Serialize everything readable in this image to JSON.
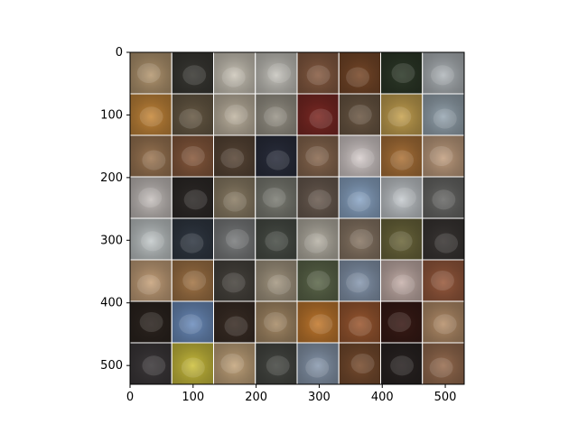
{
  "figure": {
    "image_grid": {
      "rows": 8,
      "cols": 8,
      "subject": "dog photos (pekingese / tibetan spaniel style), mixed colors",
      "cell_palettes": [
        [
          "#b79a73",
          "#3b3a35",
          "#cfc9bc",
          "#c9c7c0",
          "#8a5e44",
          "#7a4a2a",
          "#2e3a29",
          "#b3b9bd"
        ],
        [
          "#c98a3c",
          "#6a5c47",
          "#c2b7a4",
          "#9c978b",
          "#7f2a25",
          "#6e5a46",
          "#c9a553",
          "#9aa9b4"
        ],
        [
          "#a07a56",
          "#8b5c3f",
          "#5b4838",
          "#2b2f3e",
          "#8c6b52",
          "#d9d0cf",
          "#b0763b",
          "#c4a182"
        ],
        [
          "#c9c3c0",
          "#2f2b29",
          "#8e8068",
          "#7f8077",
          "#6d5e53",
          "#8ea9c9",
          "#c8cdd1",
          "#6b6b69"
        ],
        [
          "#c6cccd",
          "#323a45",
          "#7d7f80",
          "#4b5049",
          "#b9b4a8",
          "#8c7a68",
          "#6f6a3e",
          "#3b3735"
        ],
        [
          "#c9a47d",
          "#a57748",
          "#4a4640",
          "#a79a84",
          "#5f6a4d",
          "#8a9bb2",
          "#c9b3ad",
          "#9b5c3f"
        ],
        [
          "#2d2520",
          "#6e8fbf",
          "#3b2e26",
          "#a98d69",
          "#c57b2f",
          "#9e5a32",
          "#3a1b16",
          "#b8916c"
        ],
        [
          "#3e3a3c",
          "#cfc23f",
          "#c6a77e",
          "#484a45",
          "#8b9bb0",
          "#7a4e30",
          "#2a2423",
          "#9a6f52"
        ]
      ]
    },
    "axes": {
      "x_ticks": [
        "0",
        "100",
        "200",
        "300",
        "400",
        "500"
      ],
      "y_ticks": [
        "0",
        "100",
        "200",
        "300",
        "400",
        "500"
      ],
      "x_range": [
        0,
        530
      ],
      "y_range": [
        530,
        0
      ]
    }
  }
}
